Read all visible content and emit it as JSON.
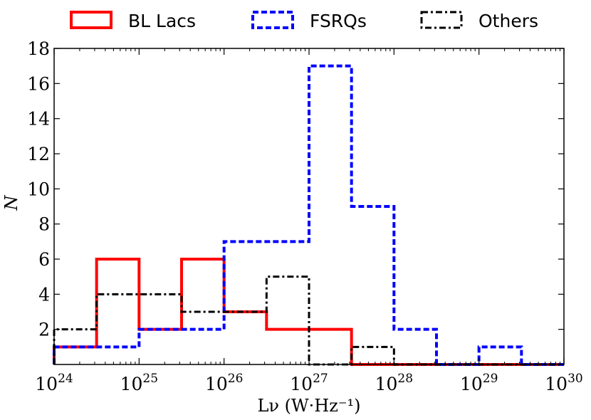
{
  "chart_data": {
    "type": "histogram",
    "title": "",
    "xlabel": "Lν (W·Hz⁻¹)",
    "ylabel": "N",
    "x_scale": "log",
    "xlim_log10": [
      24,
      30
    ],
    "ylim": [
      0,
      18
    ],
    "bin_edges_log10": [
      24.0,
      24.5,
      25.0,
      25.5,
      26.0,
      26.5,
      27.0,
      27.5,
      28.0,
      28.5,
      29.0,
      29.5,
      30.0
    ],
    "x_ticks": [
      {
        "base": "10",
        "exp": "24"
      },
      {
        "base": "10",
        "exp": "25"
      },
      {
        "base": "10",
        "exp": "26"
      },
      {
        "base": "10",
        "exp": "27"
      },
      {
        "base": "10",
        "exp": "28"
      },
      {
        "base": "10",
        "exp": "29"
      },
      {
        "base": "10",
        "exp": "30"
      }
    ],
    "y_ticks": [
      "2",
      "4",
      "6",
      "8",
      "10",
      "12",
      "14",
      "16",
      "18"
    ],
    "legend_position": "top",
    "series": [
      {
        "name": "BL Lacs",
        "color": "#ff0000",
        "style": "solid",
        "counts": [
          1,
          6,
          2,
          6,
          3,
          2,
          2,
          0,
          0,
          0,
          0,
          0
        ]
      },
      {
        "name": "FSRQs",
        "color": "#0000ff",
        "style": "dashed",
        "counts": [
          1,
          1,
          2,
          2,
          7,
          7,
          17,
          9,
          2,
          0,
          1,
          0
        ]
      },
      {
        "name": "Others",
        "color": "#000000",
        "style": "dashdot",
        "counts": [
          2,
          4,
          4,
          3,
          3,
          5,
          0,
          1,
          0,
          0,
          0,
          0
        ]
      }
    ]
  }
}
